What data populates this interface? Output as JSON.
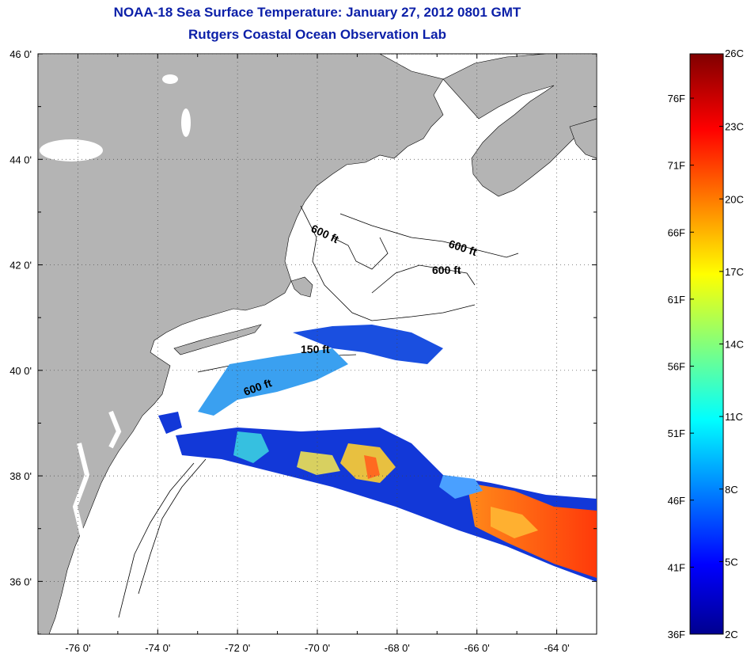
{
  "header": {
    "title": "NOAA-18 Sea Surface Temperature:  January 27, 2012 0801 GMT",
    "subtitle": "Rutgers Coastal Ocean Observation Lab"
  },
  "map": {
    "lat_labels": [
      "46 0'",
      "44 0'",
      "42 0'",
      "40 0'",
      "38 0'",
      "36 0'"
    ],
    "lat_values": [
      46,
      44,
      42,
      40,
      38,
      36
    ],
    "lon_labels": [
      "-76 0'",
      "-74 0'",
      "-72 0'",
      "-70 0'",
      "-68 0'",
      "-66 0'",
      "-64 0'"
    ],
    "lon_values": [
      -76,
      -74,
      -72,
      -70,
      -68,
      -66,
      -64
    ],
    "lon_range": [
      -77,
      -63
    ],
    "lat_range": [
      35,
      46
    ],
    "grid": "dotted",
    "land_color": "#b4b4b4",
    "water_color": "#ffffff",
    "contour_labels": [
      "600 ft",
      "600 ft",
      "600 ft",
      "150 ft",
      "600 ft"
    ]
  },
  "colorbar": {
    "fahrenheit_labels": [
      "76F",
      "71F",
      "66F",
      "61F",
      "56F",
      "51F",
      "46F",
      "41F",
      "36F"
    ],
    "celsius_labels": [
      "26C",
      "23C",
      "20C",
      "17C",
      "14C",
      "11C",
      "8C",
      "5C",
      "2C"
    ],
    "range_c": [
      2,
      26
    ],
    "colormap": "jet",
    "colors": [
      "#00008f",
      "#0000ff",
      "#00ffff",
      "#ffff00",
      "#ff0000",
      "#800000"
    ]
  }
}
